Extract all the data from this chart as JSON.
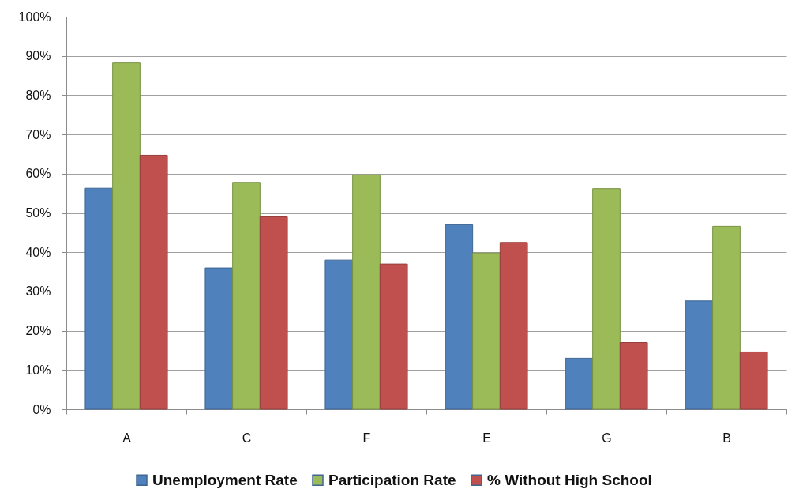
{
  "chart_data": {
    "type": "bar",
    "categories": [
      "A",
      "C",
      "F",
      "E",
      "G",
      "B"
    ],
    "series": [
      {
        "name": "Unemployment Rate",
        "color": "#4f81bd",
        "values": [
          56.3,
          36,
          38,
          47,
          13,
          27.6
        ]
      },
      {
        "name": "Participation Rate",
        "color": "#9bbb59",
        "values": [
          88.2,
          57.8,
          59.7,
          39.8,
          56.2,
          46.6
        ]
      },
      {
        "name": "% Without High School",
        "color": "#c0504d",
        "values": [
          64.7,
          49,
          37,
          42.5,
          17,
          14.6
        ]
      }
    ],
    "ylim": [
      0,
      100
    ],
    "yticks": [
      {
        "value": 0,
        "label": "0%"
      },
      {
        "value": 10,
        "label": "10%"
      },
      {
        "value": 20,
        "label": "20%"
      },
      {
        "value": 30,
        "label": "30%"
      },
      {
        "value": 40,
        "label": "40%"
      },
      {
        "value": 50,
        "label": "50%"
      },
      {
        "value": 60,
        "label": "60%"
      },
      {
        "value": 70,
        "label": "70%"
      },
      {
        "value": 80,
        "label": "80%"
      },
      {
        "value": 90,
        "label": "90%"
      },
      {
        "value": 100,
        "label": "100%"
      }
    ],
    "grid": "y",
    "legend": "bottom"
  }
}
